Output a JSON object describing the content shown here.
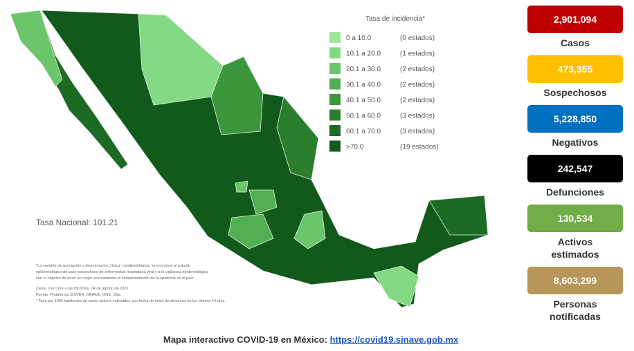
{
  "map": {
    "legend_title": "Tasa de incidencia*",
    "legend": [
      {
        "range": "0  a  10.0",
        "count": "(0 estados)",
        "color": "#9be89b"
      },
      {
        "range": "10.1  a  20.0",
        "count": "(1 estados)",
        "color": "#83d883"
      },
      {
        "range": "20.1  a  30.0",
        "count": "(2 estados)",
        "color": "#6bc56b"
      },
      {
        "range": "30.1  a  40.0",
        "count": "(2 estados)",
        "color": "#52ae52"
      },
      {
        "range": "40.1  a  50.0",
        "count": "(2 estados)",
        "color": "#3c963c"
      },
      {
        "range": "50.1  a  60.0",
        "count": "(3 estados)",
        "color": "#2a7e2e"
      },
      {
        "range": "60.1  a  70.0",
        "count": "(3 estados)",
        "color": "#1d6a24"
      },
      {
        "range": ">70.0",
        "count": "(19 estados)",
        "color": "#125a1b"
      }
    ],
    "national_rate": "Tasa Nacional: 101.21",
    "footnotes": [
      "*La variable de asociación y diseminación clínica - epidemiológica, se incorporó al estudio",
      "epidemiológico de caso sospechoso de enfermedad respiratoria viral y a la vigilancia epidemiológica",
      "con el objetivo de tener un mejor acercamiento al comportamiento de la epidemia en el país.",
      "Cierre con corte a las 09:00hrs, 04 de agosto de 2021",
      "Fuente: Plataforma SISVER, SINAVE, DGE, SSa.",
      "* Tasa por 100k habitantes de casos activos estimados, por fecha de inicio de síntomas en los últimos 14 días."
    ]
  },
  "stats": [
    {
      "value": "2,901,094",
      "label": "Casos",
      "color": "#c00000"
    },
    {
      "value": "473,355",
      "label": "Sospechosos",
      "color": "#ffc000"
    },
    {
      "value": "5,228,850",
      "label": "Negativos",
      "color": "#0070c0"
    },
    {
      "value": "242,547",
      "label": "Defunciones",
      "color": "#000000"
    },
    {
      "value": "130,534",
      "label": "Activos estimados",
      "color": "#70ad47"
    },
    {
      "value": "8,603,299",
      "label": "Personas notificadas",
      "color": "#b8965a"
    }
  ],
  "footer": {
    "text": "Mapa interactivo COVID-19 en México:",
    "link": "https://covid19.sinave.gob.mx"
  }
}
